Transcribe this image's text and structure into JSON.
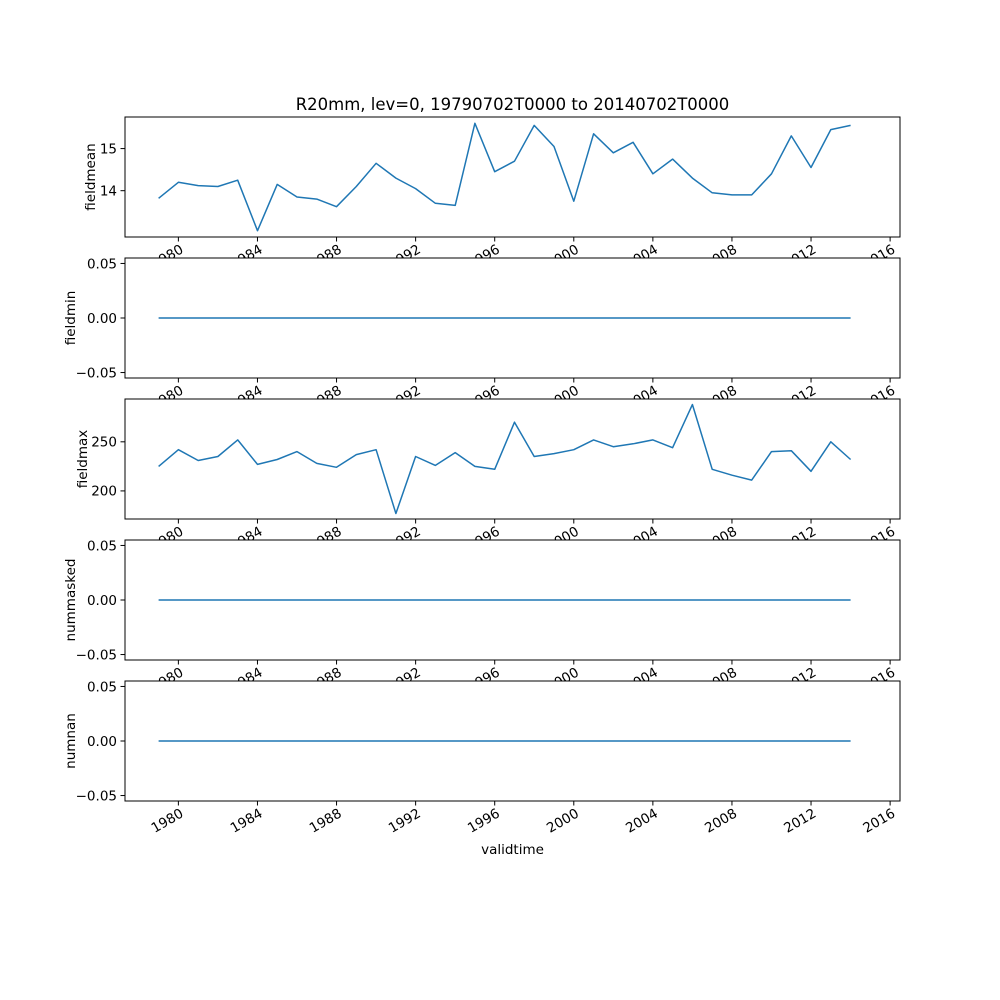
{
  "title": "R20mm, lev=0, 19790702T0000 to 20140702T0000",
  "chart_data": {
    "type": "line",
    "title": "R20mm, lev=0, 19790702T0000 to 20140702T0000",
    "xlabel": "validtime",
    "line_color": "#1f77b4",
    "grid": false,
    "legend": "none",
    "x": [
      1979,
      1980,
      1981,
      1982,
      1983,
      1984,
      1985,
      1986,
      1987,
      1988,
      1989,
      1990,
      1991,
      1992,
      1993,
      1994,
      1995,
      1996,
      1997,
      1998,
      1999,
      2000,
      2001,
      2002,
      2003,
      2004,
      2005,
      2006,
      2007,
      2008,
      2009,
      2010,
      2011,
      2012,
      2013,
      2014
    ],
    "xlim": [
      1977.3,
      2016.5
    ],
    "xticks": [
      1980,
      1984,
      1988,
      1992,
      1996,
      2000,
      2004,
      2008,
      2012,
      2016
    ],
    "xtick_labels": [
      "1980",
      "1984",
      "1988",
      "1992",
      "1996",
      "2000",
      "2004",
      "2008",
      "2012",
      "2016"
    ],
    "subplots": [
      {
        "ylabel": "fieldmean",
        "ylim": [
          12.9,
          15.75
        ],
        "yticks": [
          14,
          15
        ],
        "ytick_labels": [
          "14",
          "15"
        ],
        "values": [
          13.82,
          14.2,
          14.12,
          14.1,
          14.25,
          13.05,
          14.15,
          13.85,
          13.8,
          13.62,
          14.1,
          14.65,
          14.3,
          14.05,
          13.7,
          13.65,
          15.6,
          14.45,
          14.7,
          15.55,
          15.05,
          13.75,
          15.35,
          14.9,
          15.15,
          14.4,
          14.75,
          14.3,
          13.95,
          13.9,
          13.9,
          14.4,
          15.3,
          14.55,
          15.45,
          15.55
        ]
      },
      {
        "ylabel": "fieldmin",
        "ylim": [
          -0.055,
          0.055
        ],
        "yticks": [
          -0.05,
          0.0,
          0.05
        ],
        "ytick_labels": [
          "−0.05",
          "0.00",
          "0.05"
        ],
        "values": [
          0,
          0,
          0,
          0,
          0,
          0,
          0,
          0,
          0,
          0,
          0,
          0,
          0,
          0,
          0,
          0,
          0,
          0,
          0,
          0,
          0,
          0,
          0,
          0,
          0,
          0,
          0,
          0,
          0,
          0,
          0,
          0,
          0,
          0,
          0,
          0
        ]
      },
      {
        "ylabel": "fieldmax",
        "ylim": [
          171.4,
          293.6
        ],
        "yticks": [
          200,
          250
        ],
        "ytick_labels": [
          "200",
          "250"
        ],
        "values": [
          225,
          242,
          231,
          235,
          252,
          227,
          232,
          240,
          228,
          224,
          237,
          242,
          177,
          235,
          226,
          239,
          225,
          222,
          270,
          235,
          238,
          242,
          252,
          245,
          248,
          252,
          244,
          288,
          222,
          216,
          211,
          240,
          241,
          220,
          250,
          232
        ]
      },
      {
        "ylabel": "nummasked",
        "ylim": [
          -0.055,
          0.055
        ],
        "yticks": [
          -0.05,
          0.0,
          0.05
        ],
        "ytick_labels": [
          "−0.05",
          "0.00",
          "0.05"
        ],
        "values": [
          0,
          0,
          0,
          0,
          0,
          0,
          0,
          0,
          0,
          0,
          0,
          0,
          0,
          0,
          0,
          0,
          0,
          0,
          0,
          0,
          0,
          0,
          0,
          0,
          0,
          0,
          0,
          0,
          0,
          0,
          0,
          0,
          0,
          0,
          0,
          0
        ]
      },
      {
        "ylabel": "numnan",
        "ylim": [
          -0.055,
          0.055
        ],
        "yticks": [
          -0.05,
          0.0,
          0.05
        ],
        "ytick_labels": [
          "−0.05",
          "0.00",
          "0.05"
        ],
        "values": [
          0,
          0,
          0,
          0,
          0,
          0,
          0,
          0,
          0,
          0,
          0,
          0,
          0,
          0,
          0,
          0,
          0,
          0,
          0,
          0,
          0,
          0,
          0,
          0,
          0,
          0,
          0,
          0,
          0,
          0,
          0,
          0,
          0,
          0,
          0,
          0
        ]
      }
    ]
  }
}
